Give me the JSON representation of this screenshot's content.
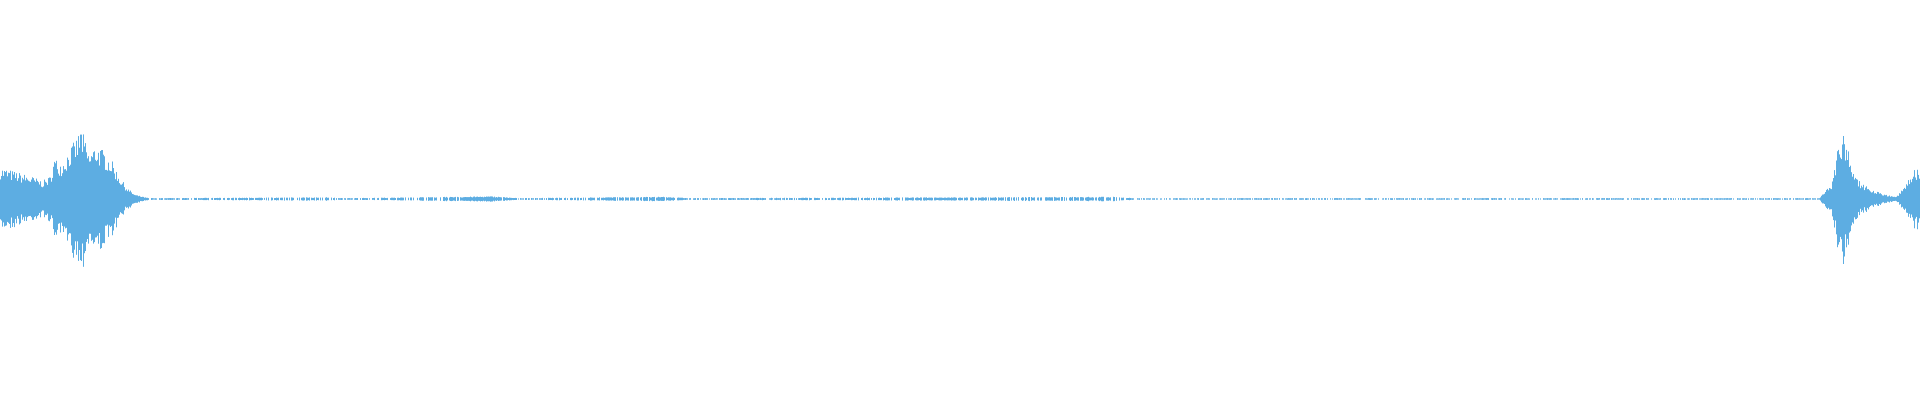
{
  "chart_data": {
    "type": "area",
    "title": "",
    "xlabel": "",
    "ylabel": "",
    "ylim": [
      -1,
      1
    ],
    "grid": false,
    "legend": "none",
    "color": "#5DADE2",
    "background": "#FFFFFF",
    "series": [
      {
        "envelope_points": [
          [
            0.0,
            0.14
          ],
          [
            0.008,
            0.12
          ],
          [
            0.016,
            0.1
          ],
          [
            0.022,
            0.08
          ],
          [
            0.026,
            0.1
          ],
          [
            0.028,
            0.18
          ],
          [
            0.032,
            0.16
          ],
          [
            0.036,
            0.22
          ],
          [
            0.04,
            0.27
          ],
          [
            0.042,
            0.32
          ],
          [
            0.046,
            0.2
          ],
          [
            0.05,
            0.24
          ],
          [
            0.054,
            0.21
          ],
          [
            0.058,
            0.17
          ],
          [
            0.062,
            0.1
          ],
          [
            0.066,
            0.05
          ],
          [
            0.07,
            0.02
          ],
          [
            0.076,
            0.006
          ],
          [
            0.08,
            0.004
          ],
          [
            0.17,
            0.008
          ],
          [
            0.18,
            0.004
          ],
          [
            0.24,
            0.01
          ],
          [
            0.256,
            0.012
          ],
          [
            0.27,
            0.004
          ],
          [
            0.345,
            0.01
          ],
          [
            0.36,
            0.004
          ],
          [
            0.582,
            0.01
          ],
          [
            0.59,
            0.004
          ],
          [
            0.948,
            0.004
          ],
          [
            0.95,
            0.03
          ],
          [
            0.954,
            0.06
          ],
          [
            0.957,
            0.2
          ],
          [
            0.96,
            0.29
          ],
          [
            0.963,
            0.22
          ],
          [
            0.966,
            0.1
          ],
          [
            0.97,
            0.07
          ],
          [
            0.976,
            0.04
          ],
          [
            0.982,
            0.02
          ],
          [
            0.988,
            0.01
          ],
          [
            0.992,
            0.05
          ],
          [
            0.996,
            0.12
          ],
          [
            1.0,
            0.14
          ]
        ]
      }
    ]
  }
}
